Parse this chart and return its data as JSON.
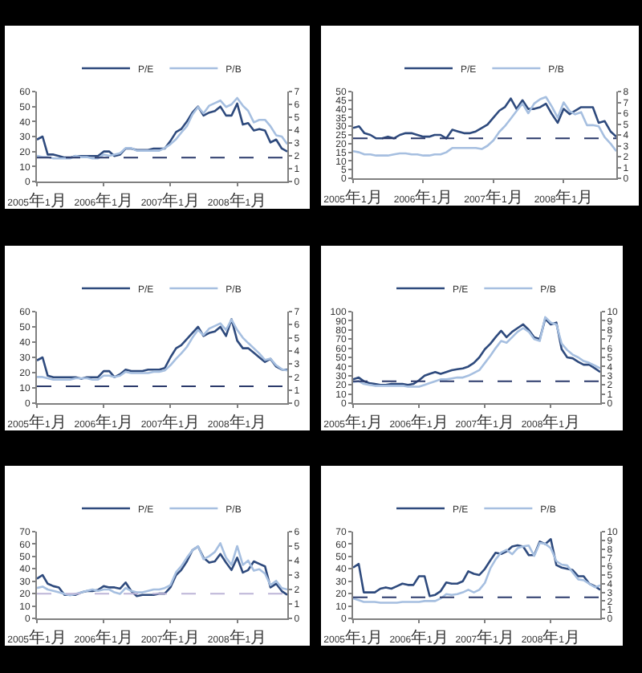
{
  "chart_data": [
    {
      "type": "line",
      "x": [
        "2005-01",
        "2005-02",
        "2005-03",
        "2005-04",
        "2005-05",
        "2005-06",
        "2005-07",
        "2005-08",
        "2005-09",
        "2005-10",
        "2005-11",
        "2005-12",
        "2006-01",
        "2006-02",
        "2006-03",
        "2006-04",
        "2006-05",
        "2006-06",
        "2006-07",
        "2006-08",
        "2006-09",
        "2006-10",
        "2006-11",
        "2006-12",
        "2007-01",
        "2007-02",
        "2007-03",
        "2007-04",
        "2007-05",
        "2007-06",
        "2007-07",
        "2007-08",
        "2007-09",
        "2007-10",
        "2007-11",
        "2007-12",
        "2008-01",
        "2008-02",
        "2008-03",
        "2008-04",
        "2008-05",
        "2008-06",
        "2008-07",
        "2008-08",
        "2008-09",
        "2008-10"
      ],
      "series": [
        {
          "name": "P/E",
          "color": "#2e4a7d",
          "values": [
            28,
            30,
            18,
            18,
            17,
            16,
            16,
            17,
            17,
            17,
            17,
            17,
            20,
            20,
            17,
            18,
            22,
            22,
            21,
            21,
            21,
            22,
            22,
            22,
            27,
            33,
            35,
            40,
            46,
            50,
            44,
            46,
            47,
            50,
            44,
            44,
            52,
            38,
            39,
            34,
            35,
            34,
            26,
            28,
            22,
            20
          ]
        },
        {
          "name": "P/B",
          "color": "#a6bfe0",
          "axis": "y2",
          "values": [
            2.0,
            1.9,
            1.9,
            1.8,
            1.8,
            1.8,
            1.8,
            2.0,
            1.9,
            1.9,
            1.8,
            1.8,
            2.1,
            2.0,
            2.1,
            2.2,
            2.6,
            2.6,
            2.4,
            2.4,
            2.4,
            2.4,
            2.4,
            2.6,
            2.9,
            3.3,
            3.8,
            4.3,
            5.2,
            5.8,
            5.3,
            5.9,
            6.1,
            6.3,
            5.8,
            6.0,
            6.5,
            5.9,
            5.5,
            4.6,
            4.8,
            4.8,
            4.3,
            3.6,
            3.5,
            2.9
          ]
        }
      ],
      "xlim": [
        "2005-01",
        "2008-10"
      ],
      "xticks": [
        {
          "value": "2005-01",
          "label": "2005年1月"
        },
        {
          "value": "2006-01",
          "label": "2006年1月"
        },
        {
          "value": "2007-01",
          "label": "2007年1月"
        },
        {
          "value": "2008-01",
          "label": "2008年1月"
        }
      ],
      "ylim": [
        0,
        60
      ],
      "yticks": [
        0,
        10,
        20,
        30,
        40,
        50,
        60
      ],
      "y2lim": [
        0,
        7
      ],
      "y2ticks": [
        0,
        1,
        2,
        3,
        4,
        5,
        6,
        7
      ],
      "ref_lines": [
        {
          "axis": "y",
          "value": 16,
          "color": "#2b3a6b",
          "line_style": "dashed"
        }
      ],
      "legend": "top"
    },
    {
      "type": "line",
      "x": [
        "2005-01",
        "2005-02",
        "2005-03",
        "2005-04",
        "2005-05",
        "2005-06",
        "2005-07",
        "2005-08",
        "2005-09",
        "2005-10",
        "2005-11",
        "2005-12",
        "2006-01",
        "2006-02",
        "2006-03",
        "2006-04",
        "2006-05",
        "2006-06",
        "2006-07",
        "2006-08",
        "2006-09",
        "2006-10",
        "2006-11",
        "2006-12",
        "2007-01",
        "2007-02",
        "2007-03",
        "2007-04",
        "2007-05",
        "2007-06",
        "2007-07",
        "2007-08",
        "2007-09",
        "2007-10",
        "2007-11",
        "2007-12",
        "2008-01",
        "2008-02",
        "2008-03",
        "2008-04",
        "2008-05",
        "2008-06",
        "2008-07",
        "2008-08",
        "2008-09",
        "2008-10"
      ],
      "series": [
        {
          "name": "P/E",
          "color": "#2e4a7d",
          "values": [
            29,
            30,
            26,
            25,
            23,
            23,
            24,
            23,
            25,
            26,
            26,
            25,
            24,
            24,
            25,
            25,
            23,
            28,
            27,
            26,
            26,
            27,
            29,
            31,
            35,
            39,
            41,
            46,
            40,
            45,
            40,
            40,
            41,
            43,
            37,
            32,
            40,
            37,
            39,
            41,
            41,
            41,
            32,
            33,
            27,
            24
          ]
        },
        {
          "name": "P/B",
          "color": "#a6bfe0",
          "axis": "y2",
          "values": [
            2.5,
            2.4,
            2.2,
            2.2,
            2.1,
            2.1,
            2.1,
            2.2,
            2.3,
            2.3,
            2.2,
            2.2,
            2.1,
            2.1,
            2.2,
            2.2,
            2.4,
            2.8,
            2.8,
            2.8,
            2.8,
            2.8,
            2.7,
            3.0,
            3.5,
            4.3,
            4.8,
            5.5,
            6.2,
            6.9,
            6.0,
            6.9,
            7.3,
            7.5,
            6.6,
            5.6,
            7.0,
            6.2,
            5.9,
            6.1,
            4.9,
            4.9,
            4.8,
            3.8,
            3.2,
            2.5
          ]
        }
      ],
      "xlim": [
        "2005-01",
        "2008-10"
      ],
      "xticks": [
        {
          "value": "2005-01",
          "label": "2005年1月"
        },
        {
          "value": "2006-01",
          "label": "2006年1月"
        },
        {
          "value": "2007-01",
          "label": "2007年1月"
        },
        {
          "value": "2008-01",
          "label": "2008年1月"
        }
      ],
      "ylim": [
        0,
        50
      ],
      "yticks": [
        0,
        5,
        10,
        15,
        20,
        25,
        30,
        35,
        40,
        45,
        50
      ],
      "y2lim": [
        0,
        8
      ],
      "y2ticks": [
        0,
        1,
        2,
        3,
        4,
        5,
        6,
        7,
        8
      ],
      "ref_lines": [
        {
          "axis": "y",
          "value": 23,
          "color": "#2b3a6b",
          "line_style": "dashed"
        }
      ],
      "legend": "top"
    },
    {
      "type": "line",
      "x": [
        "2005-01",
        "2005-02",
        "2005-03",
        "2005-04",
        "2005-05",
        "2005-06",
        "2005-07",
        "2005-08",
        "2005-09",
        "2005-10",
        "2005-11",
        "2005-12",
        "2006-01",
        "2006-02",
        "2006-03",
        "2006-04",
        "2006-05",
        "2006-06",
        "2006-07",
        "2006-08",
        "2006-09",
        "2006-10",
        "2006-11",
        "2006-12",
        "2007-01",
        "2007-02",
        "2007-03",
        "2007-04",
        "2007-05",
        "2007-06",
        "2007-07",
        "2007-08",
        "2007-09",
        "2007-10",
        "2007-11",
        "2007-12",
        "2008-01",
        "2008-02",
        "2008-03",
        "2008-04",
        "2008-05",
        "2008-06",
        "2008-07",
        "2008-08",
        "2008-09",
        "2008-10"
      ],
      "series": [
        {
          "name": "P/E",
          "color": "#2e4a7d",
          "values": [
            28,
            30,
            18,
            17,
            17,
            17,
            17,
            17,
            16,
            17,
            17,
            17,
            21,
            21,
            17,
            19,
            22,
            21,
            21,
            21,
            22,
            22,
            22,
            23,
            30,
            36,
            38,
            42,
            46,
            50,
            44,
            46,
            47,
            50,
            44,
            55,
            41,
            36,
            36,
            33,
            30,
            27,
            29,
            24,
            22,
            22
          ]
        },
        {
          "name": "P/B",
          "color": "#a6bfe0",
          "axis": "y2",
          "values": [
            2.0,
            2.0,
            1.9,
            1.8,
            1.8,
            1.8,
            1.8,
            1.9,
            1.9,
            1.9,
            1.8,
            1.8,
            2.1,
            2.1,
            2.0,
            2.1,
            2.4,
            2.3,
            2.3,
            2.3,
            2.3,
            2.4,
            2.4,
            2.5,
            2.9,
            3.4,
            3.8,
            4.3,
            5.0,
            5.6,
            5.2,
            5.7,
            5.9,
            6.1,
            5.6,
            6.4,
            5.6,
            5.0,
            4.6,
            4.2,
            3.8,
            3.3,
            3.4,
            2.9,
            2.6,
            2.5
          ]
        }
      ],
      "xlim": [
        "2005-01",
        "2008-10"
      ],
      "xticks": [
        {
          "value": "2005-01",
          "label": "2005年1月"
        },
        {
          "value": "2006-01",
          "label": "2006年1月"
        },
        {
          "value": "2007-01",
          "label": "2007年1月"
        },
        {
          "value": "2008-01",
          "label": "2008年1月"
        }
      ],
      "ylim": [
        0,
        60
      ],
      "yticks": [
        0,
        10,
        20,
        30,
        40,
        50,
        60
      ],
      "y2lim": [
        0,
        7
      ],
      "y2ticks": [
        0,
        1,
        2,
        3,
        4,
        5,
        6,
        7
      ],
      "ref_lines": [
        {
          "axis": "y",
          "value": 11,
          "color": "#2b3a6b",
          "line_style": "dashed"
        }
      ],
      "legend": "top"
    },
    {
      "type": "line",
      "x": [
        "2005-01",
        "2005-02",
        "2005-03",
        "2005-04",
        "2005-05",
        "2005-06",
        "2005-07",
        "2005-08",
        "2005-09",
        "2005-10",
        "2005-11",
        "2005-12",
        "2006-01",
        "2006-02",
        "2006-03",
        "2006-04",
        "2006-05",
        "2006-06",
        "2006-07",
        "2006-08",
        "2006-09",
        "2006-10",
        "2006-11",
        "2006-12",
        "2007-01",
        "2007-02",
        "2007-03",
        "2007-04",
        "2007-05",
        "2007-06",
        "2007-07",
        "2007-08",
        "2007-09",
        "2007-10",
        "2007-11",
        "2007-12",
        "2008-01",
        "2008-02",
        "2008-03",
        "2008-04",
        "2008-05",
        "2008-06",
        "2008-07",
        "2008-08",
        "2008-09",
        "2008-10"
      ],
      "series": [
        {
          "name": "P/E",
          "color": "#2e4a7d",
          "values": [
            26,
            28,
            24,
            22,
            21,
            20,
            20,
            21,
            21,
            21,
            20,
            21,
            25,
            30,
            32,
            34,
            32,
            34,
            36,
            37,
            38,
            40,
            44,
            50,
            59,
            65,
            72,
            79,
            72,
            78,
            82,
            86,
            80,
            72,
            70,
            92,
            86,
            88,
            59,
            50,
            49,
            45,
            42,
            42,
            38,
            34
          ]
        },
        {
          "name": "P/B",
          "color": "#a6bfe0",
          "axis": "y2",
          "values": [
            2.3,
            2.4,
            2.1,
            2.0,
            1.9,
            1.9,
            1.9,
            1.9,
            1.9,
            1.9,
            1.8,
            1.8,
            1.8,
            2.0,
            2.2,
            2.4,
            2.6,
            2.6,
            2.7,
            2.8,
            2.8,
            3.0,
            3.3,
            3.6,
            4.4,
            5.2,
            6.0,
            6.8,
            6.6,
            7.2,
            7.8,
            8.2,
            7.8,
            7.0,
            6.8,
            9.4,
            8.8,
            8.6,
            6.5,
            5.8,
            5.3,
            5.0,
            4.6,
            4.4,
            4.1,
            3.8
          ]
        }
      ],
      "xlim": [
        "2005-01",
        "2008-10"
      ],
      "xticks": [
        {
          "value": "2005-01",
          "label": "2005年1月"
        },
        {
          "value": "2006-01",
          "label": "2006年1月"
        },
        {
          "value": "2007-01",
          "label": "2007年1月"
        },
        {
          "value": "2008-01",
          "label": "2008年1月"
        }
      ],
      "ylim": [
        0,
        100
      ],
      "yticks": [
        0,
        10,
        20,
        30,
        40,
        50,
        60,
        70,
        80,
        90,
        100
      ],
      "y2lim": [
        0,
        10
      ],
      "y2ticks": [
        0,
        1,
        2,
        3,
        4,
        5,
        6,
        7,
        8,
        9,
        10
      ],
      "ref_lines": [
        {
          "axis": "y",
          "value": 24,
          "color": "#2b3a6b",
          "line_style": "dashed"
        }
      ],
      "legend": "top"
    },
    {
      "type": "line",
      "x": [
        "2005-01",
        "2005-02",
        "2005-03",
        "2005-04",
        "2005-05",
        "2005-06",
        "2005-07",
        "2005-08",
        "2005-09",
        "2005-10",
        "2005-11",
        "2005-12",
        "2006-01",
        "2006-02",
        "2006-03",
        "2006-04",
        "2006-05",
        "2006-06",
        "2006-07",
        "2006-08",
        "2006-09",
        "2006-10",
        "2006-11",
        "2006-12",
        "2007-01",
        "2007-02",
        "2007-03",
        "2007-04",
        "2007-05",
        "2007-06",
        "2007-07",
        "2007-08",
        "2007-09",
        "2007-10",
        "2007-11",
        "2007-12",
        "2008-01",
        "2008-02",
        "2008-03",
        "2008-04",
        "2008-05",
        "2008-06",
        "2008-07",
        "2008-08",
        "2008-09",
        "2008-10"
      ],
      "series": [
        {
          "name": "P/E",
          "color": "#2e4a7d",
          "values": [
            32,
            35,
            28,
            26,
            25,
            19,
            19,
            19,
            21,
            22,
            22,
            23,
            26,
            25,
            25,
            24,
            29,
            22,
            18,
            19,
            19,
            19,
            20,
            20,
            25,
            35,
            39,
            46,
            55,
            58,
            49,
            45,
            46,
            52,
            45,
            39,
            49,
            37,
            39,
            46,
            44,
            42,
            25,
            28,
            22,
            19
          ]
        },
        {
          "name": "P/B",
          "color": "#a6bfe0",
          "axis": "y2",
          "values": [
            2.1,
            2.2,
            2.0,
            1.9,
            1.8,
            1.7,
            1.6,
            1.7,
            1.8,
            1.9,
            2.0,
            1.9,
            2.0,
            2.0,
            1.8,
            1.7,
            2.1,
            1.9,
            1.8,
            1.8,
            1.9,
            2.0,
            2.0,
            2.1,
            2.3,
            3.2,
            3.6,
            4.2,
            4.7,
            5.0,
            4.1,
            4.3,
            4.6,
            5.2,
            4.2,
            3.7,
            5.0,
            3.7,
            4.0,
            3.3,
            3.4,
            3.1,
            2.3,
            2.6,
            2.1,
            2.0
          ]
        }
      ],
      "xlim": [
        "2005-01",
        "2008-10"
      ],
      "xticks": [
        {
          "value": "2005-01",
          "label": "2005年1月"
        },
        {
          "value": "2006-01",
          "label": "2006年1月"
        },
        {
          "value": "2007-01",
          "label": "2007年1月"
        },
        {
          "value": "2008-01",
          "label": "2008年1月"
        }
      ],
      "ylim": [
        0,
        70
      ],
      "yticks": [
        0,
        10,
        20,
        30,
        40,
        50,
        60,
        70
      ],
      "y2lim": [
        0,
        6
      ],
      "y2ticks": [
        0,
        1,
        2,
        3,
        4,
        5,
        6
      ],
      "ref_lines": [
        {
          "axis": "y",
          "value": 20,
          "color": "#bdb5d8",
          "line_style": "dashed"
        }
      ],
      "legend": "top"
    },
    {
      "type": "line",
      "x": [
        "2005-01",
        "2005-02",
        "2005-03",
        "2005-04",
        "2005-05",
        "2005-06",
        "2005-07",
        "2005-08",
        "2005-09",
        "2005-10",
        "2005-11",
        "2005-12",
        "2006-01",
        "2006-02",
        "2006-03",
        "2006-04",
        "2006-05",
        "2006-06",
        "2006-07",
        "2006-08",
        "2006-09",
        "2006-10",
        "2006-11",
        "2006-12",
        "2007-01",
        "2007-02",
        "2007-03",
        "2007-04",
        "2007-05",
        "2007-06",
        "2007-07",
        "2007-08",
        "2007-09",
        "2007-10",
        "2007-11",
        "2007-12",
        "2008-01",
        "2008-02",
        "2008-03",
        "2008-04",
        "2008-05",
        "2008-06",
        "2008-07",
        "2008-08",
        "2008-09",
        "2008-10"
      ],
      "series": [
        {
          "name": "P/E",
          "color": "#2e4a7d",
          "values": [
            41,
            44,
            21,
            21,
            21,
            24,
            25,
            24,
            26,
            28,
            27,
            27,
            34,
            34,
            18,
            19,
            22,
            29,
            28,
            28,
            30,
            38,
            36,
            35,
            40,
            47,
            53,
            52,
            54,
            58,
            59,
            58,
            51,
            51,
            62,
            60,
            64,
            43,
            41,
            40,
            39,
            34,
            34,
            28,
            26,
            23
          ]
        },
        {
          "name": "P/B",
          "color": "#a6bfe0",
          "axis": "y2",
          "values": [
            2.3,
            2.1,
            1.9,
            1.9,
            1.9,
            1.8,
            1.8,
            1.8,
            1.8,
            1.9,
            1.9,
            1.9,
            1.9,
            2.0,
            2.0,
            2.0,
            2.3,
            2.8,
            2.7,
            2.8,
            3.0,
            3.3,
            3.0,
            3.3,
            4.1,
            5.8,
            6.8,
            7.6,
            7.9,
            7.4,
            8.1,
            8.3,
            8.4,
            7.2,
            8.7,
            8.6,
            8.1,
            6.6,
            6.2,
            6.1,
            5.3,
            4.5,
            4.4,
            4.0,
            3.6,
            3.8
          ]
        }
      ],
      "xlim": [
        "2005-01",
        "2008-10"
      ],
      "xticks": [
        {
          "value": "2005-01",
          "label": "2005年1月"
        },
        {
          "value": "2006-01",
          "label": "2006年1月"
        },
        {
          "value": "2007-01",
          "label": "2007年1月"
        },
        {
          "value": "2008-01",
          "label": "2008年1月"
        }
      ],
      "ylim": [
        0,
        70
      ],
      "yticks": [
        0,
        10,
        20,
        30,
        40,
        50,
        60,
        70
      ],
      "y2lim": [
        0,
        10
      ],
      "y2ticks": [
        0,
        1,
        2,
        3,
        4,
        5,
        6,
        7,
        8,
        9,
        10
      ],
      "ref_lines": [
        {
          "axis": "y",
          "value": 17,
          "color": "#2b3a6b",
          "line_style": "dashed"
        }
      ],
      "legend": "top"
    }
  ]
}
